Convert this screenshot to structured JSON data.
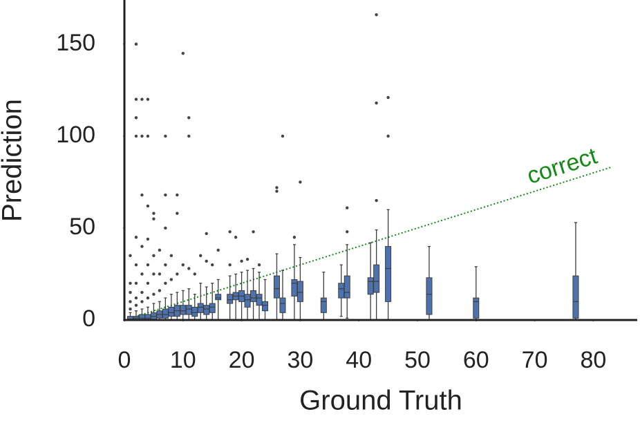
{
  "chart_data": {
    "type": "box",
    "xlabel": "Ground Truth",
    "ylabel": "Prediction",
    "xlim": [
      0,
      87.5
    ],
    "ylim": [
      0,
      174
    ],
    "xticks": [
      0,
      10,
      20,
      30,
      40,
      50,
      60,
      70,
      80
    ],
    "yticks": [
      0,
      50,
      100,
      150
    ],
    "color": "#4c72b0",
    "grid": false,
    "reference_line": {
      "label": "correct",
      "color": "#138a13",
      "x": [
        0,
        83
      ],
      "y": [
        0,
        83
      ]
    },
    "boxes": [
      {
        "x": 1,
        "whislo": 0,
        "q1": 0,
        "med": 0.5,
        "q3": 2,
        "whishi": 4,
        "fliers": [
          6,
          10,
          15,
          20,
          35
        ]
      },
      {
        "x": 2,
        "whislo": 0,
        "q1": 0,
        "med": 1,
        "q3": 2,
        "whishi": 5,
        "fliers": [
          8,
          12,
          20,
          30,
          45,
          100,
          110,
          120,
          150
        ]
      },
      {
        "x": 3,
        "whislo": 0,
        "q1": 0,
        "med": 1,
        "q3": 3,
        "whishi": 6,
        "fliers": [
          10,
          15,
          25,
          40,
          68,
          100,
          120
        ]
      },
      {
        "x": 4,
        "whislo": 0,
        "q1": 0,
        "med": 1,
        "q3": 3,
        "whishi": 7,
        "fliers": [
          12,
          20,
          30,
          44,
          62,
          100,
          120
        ]
      },
      {
        "x": 5,
        "whislo": 0,
        "q1": 0,
        "med": 2,
        "q3": 4,
        "whishi": 9,
        "fliers": [
          14,
          25,
          35,
          55,
          58
        ]
      },
      {
        "x": 6,
        "whislo": 0,
        "q1": 1,
        "med": 3,
        "q3": 5,
        "whishi": 10,
        "fliers": [
          16,
          25,
          38
        ]
      },
      {
        "x": 7,
        "whislo": 0,
        "q1": 1,
        "med": 3,
        "q3": 6,
        "whishi": 12,
        "fliers": [
          20,
          30,
          50,
          68,
          100
        ]
      },
      {
        "x": 8,
        "whislo": 0,
        "q1": 2,
        "med": 4,
        "q3": 7,
        "whishi": 14,
        "fliers": [
          22,
          35
        ]
      },
      {
        "x": 9,
        "whislo": 0,
        "q1": 2,
        "med": 5,
        "q3": 8,
        "whishi": 15,
        "fliers": [
          25,
          58,
          68
        ]
      },
      {
        "x": 10,
        "whislo": 0,
        "q1": 3,
        "med": 5,
        "q3": 8,
        "whishi": 16,
        "fliers": [
          30,
          145
        ]
      },
      {
        "x": 11,
        "whislo": 0,
        "q1": 3,
        "med": 6,
        "q3": 8,
        "whishi": 17,
        "fliers": [
          28,
          100,
          110
        ]
      },
      {
        "x": 12,
        "whislo": 0,
        "q1": 2,
        "med": 4,
        "q3": 7,
        "whishi": 14,
        "fliers": [
          25
        ]
      },
      {
        "x": 13,
        "whislo": 0,
        "q1": 4,
        "med": 7,
        "q3": 9,
        "whishi": 20,
        "fliers": [
          35
        ]
      },
      {
        "x": 14,
        "whislo": 0,
        "q1": 3,
        "med": 6,
        "q3": 8,
        "whishi": 18,
        "fliers": [
          32,
          47
        ]
      },
      {
        "x": 15,
        "whislo": 0,
        "q1": 4,
        "med": 7,
        "q3": 9,
        "whishi": 20,
        "fliers": [
          30
        ]
      },
      {
        "x": 16,
        "whislo": 0,
        "q1": 11,
        "med": 12,
        "q3": 14,
        "whishi": 22,
        "fliers": [
          38
        ]
      },
      {
        "x": 18,
        "whislo": 0,
        "q1": 9,
        "med": 11,
        "q3": 14,
        "whishi": 24,
        "fliers": [
          30,
          48
        ]
      },
      {
        "x": 19,
        "whislo": 0,
        "q1": 11,
        "med": 13,
        "q3": 15,
        "whishi": 25,
        "fliers": [
          45
        ]
      },
      {
        "x": 20,
        "whislo": 0,
        "q1": 10,
        "med": 13,
        "q3": 16,
        "whishi": 26,
        "fliers": [
          32
        ]
      },
      {
        "x": 21,
        "whislo": 0,
        "q1": 7,
        "med": 11,
        "q3": 14,
        "whishi": 27,
        "fliers": [
          33
        ]
      },
      {
        "x": 22,
        "whislo": 0,
        "q1": 10,
        "med": 12,
        "q3": 16,
        "whishi": 28,
        "fliers": [
          48
        ]
      },
      {
        "x": 23,
        "whislo": 0,
        "q1": 8,
        "med": 12,
        "q3": 14,
        "whishi": 26,
        "fliers": [
          30
        ]
      },
      {
        "x": 24,
        "whislo": 0,
        "q1": 5,
        "med": 8,
        "q3": 10,
        "whishi": 22,
        "fliers": []
      },
      {
        "x": 26,
        "whislo": 0,
        "q1": 12,
        "med": 17,
        "q3": 24,
        "whishi": 36,
        "fliers": [
          70,
          72
        ]
      },
      {
        "x": 27,
        "whislo": 0,
        "q1": 4,
        "med": 9,
        "q3": 12,
        "whishi": 27,
        "fliers": [
          100
        ]
      },
      {
        "x": 29,
        "whislo": 0,
        "q1": 13,
        "med": 20,
        "q3": 22,
        "whishi": 41,
        "fliers": [
          45
        ]
      },
      {
        "x": 30,
        "whislo": 0,
        "q1": 10,
        "med": 15,
        "q3": 21,
        "whishi": 34,
        "fliers": [
          75
        ]
      },
      {
        "x": 34,
        "whislo": 0,
        "q1": 4,
        "med": 10,
        "q3": 12,
        "whishi": 26,
        "fliers": []
      },
      {
        "x": 37,
        "whislo": 2,
        "q1": 12,
        "med": 17,
        "q3": 20,
        "whishi": 30,
        "fliers": []
      },
      {
        "x": 38,
        "whislo": 1,
        "q1": 12,
        "med": 15,
        "q3": 24,
        "whishi": 41,
        "fliers": [
          48,
          61
        ]
      },
      {
        "x": 42,
        "whislo": 0,
        "q1": 14,
        "med": 21,
        "q3": 23,
        "whishi": 42,
        "fliers": []
      },
      {
        "x": 43,
        "whislo": 0,
        "q1": 15,
        "med": 21,
        "q3": 30,
        "whishi": 49,
        "fliers": [
          65,
          118,
          166
        ]
      },
      {
        "x": 45,
        "whislo": 0,
        "q1": 10,
        "med": 28,
        "q3": 40,
        "whishi": 60,
        "fliers": [
          100,
          121
        ]
      },
      {
        "x": 52,
        "whislo": 0,
        "q1": 3,
        "med": 14,
        "q3": 23,
        "whishi": 40,
        "fliers": []
      },
      {
        "x": 60,
        "whislo": 0,
        "q1": 1,
        "med": 10,
        "q3": 12,
        "whishi": 29,
        "fliers": []
      },
      {
        "x": 77,
        "whislo": 0,
        "q1": 1,
        "med": 10,
        "q3": 24,
        "whishi": 53,
        "fliers": []
      }
    ]
  }
}
